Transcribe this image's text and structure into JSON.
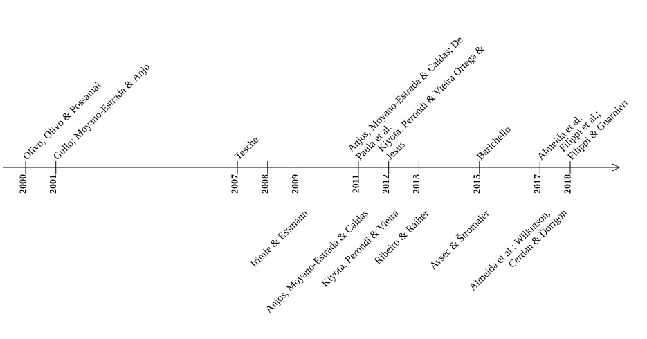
{
  "timeline": {
    "events": [
      {
        "year": 2000,
        "above": [
          "Olivo; Olivo & Possamai"
        ],
        "below": []
      },
      {
        "year": 2001,
        "above": [
          "Gullo; Moyano-Estrada & Anjo"
        ],
        "below": []
      },
      {
        "year": 2007,
        "above": [
          "Tesche"
        ],
        "below": []
      },
      {
        "year": 2008,
        "above": [],
        "below": []
      },
      {
        "year": 2009,
        "above": [],
        "below": [
          "Irimie & Essmann"
        ]
      },
      {
        "year": 2011,
        "above": [
          "Anjos, Moyano-Estrada & Caldas; De",
          "Paula et al."
        ],
        "below": [
          "Anjos, Moyano-Estrada & Caldas"
        ]
      },
      {
        "year": 2012,
        "above": [
          "Kiyota, Perondi & Vieira Ortega &",
          "Jesus"
        ],
        "below": [
          "Kiyota, Perondi & Vieira"
        ]
      },
      {
        "year": 2013,
        "above": [],
        "below": [
          "Ribeiro & Raiher"
        ]
      },
      {
        "year": 2015,
        "above": [
          "Barichello"
        ],
        "below": [
          "Avsec & Štromajer"
        ]
      },
      {
        "year": 2017,
        "above": [
          "Almeida et al."
        ],
        "below": [
          "Almeida et al.; Wilkinson,",
          "Cerdan & Dorigon"
        ]
      },
      {
        "year": 2018,
        "above": [
          "Filippi et al.;",
          "Filippi & Guarnieri"
        ],
        "below": []
      }
    ]
  }
}
